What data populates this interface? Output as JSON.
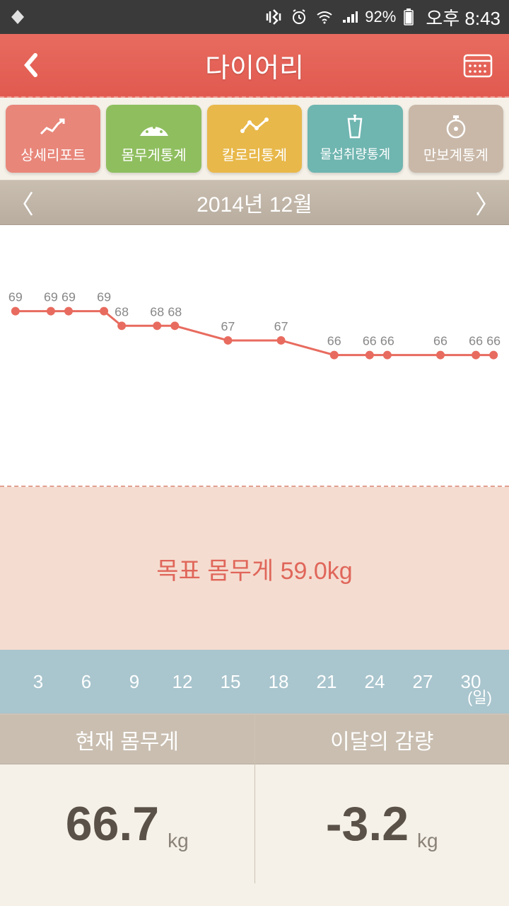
{
  "status": {
    "battery_pct": "92%",
    "time": "오후 8:43"
  },
  "header": {
    "title": "다이어리"
  },
  "tabs": [
    {
      "label": "상세리포트",
      "bg": "#e8867a"
    },
    {
      "label": "몸무게통계",
      "bg": "#8fbe5f"
    },
    {
      "label": "칼로리통계",
      "bg": "#e8b84a"
    },
    {
      "label": "물섭취량통계",
      "bg": "#6fb5b0"
    },
    {
      "label": "만보계통계",
      "bg": "#c9b8a8"
    }
  ],
  "month": {
    "label": "2014년 12월"
  },
  "chart": {
    "type": "line",
    "line_color": "#e86b5f",
    "point_fill": "#e86b5f",
    "label_color": "#888",
    "label_fontsize": 18,
    "background": "#ffffff",
    "x_values": [
      3,
      5,
      6,
      8,
      9,
      11,
      12,
      15,
      18,
      21,
      23,
      24,
      27,
      29,
      30
    ],
    "y_values": [
      69,
      69,
      69,
      69,
      68,
      68,
      68,
      67,
      67,
      66,
      66,
      66,
      66,
      66,
      66
    ],
    "y_min": 59,
    "y_max": 72,
    "x_min": 3,
    "x_max": 30
  },
  "target": {
    "text": "목표 몸무게 59.0kg"
  },
  "x_axis": {
    "ticks": [
      "3",
      "6",
      "9",
      "12",
      "15",
      "18",
      "21",
      "24",
      "27",
      "30"
    ],
    "unit": "(일)"
  },
  "summary": {
    "current": {
      "label": "현재 몸무게",
      "value": "66.7",
      "unit": "kg"
    },
    "loss": {
      "label": "이달의 감량",
      "value": "-3.2",
      "unit": "kg"
    }
  }
}
